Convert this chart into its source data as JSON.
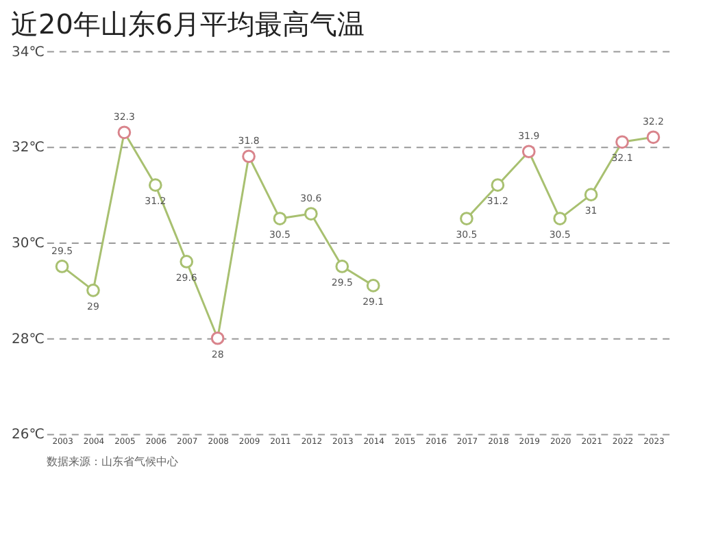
{
  "chart_data": {
    "type": "line",
    "title": "近20年山东6月平均最高气温",
    "categories": [
      "2003",
      "2004",
      "2005",
      "2006",
      "2007",
      "2008",
      "2009",
      "2011",
      "2012",
      "2013",
      "2014",
      "2015",
      "2016",
      "2017",
      "2018",
      "2019",
      "2020",
      "2021",
      "2022",
      "2023"
    ],
    "series": [
      {
        "color": "#a8c070",
        "values": [
          29.5,
          29,
          32.3,
          31.2,
          29.6,
          28,
          31.8,
          30.5,
          30.6,
          29.5,
          29.1,
          null,
          null,
          30.5,
          31.2,
          31.9,
          30.5,
          31,
          32.1,
          32.2
        ],
        "colors": [
          "#a8c070",
          "#a8c070",
          "#d9848c",
          "#a8c070",
          "#a8c070",
          "#d9848c",
          "#d9848c",
          "#a8c070",
          "#a8c070",
          "#a8c070",
          "#a8c070",
          "#a8c070",
          "#a8c070",
          "#a8c070",
          "#a8c070",
          "#d9848c",
          "#a8c070",
          "#a8c070",
          "#d9848c",
          "#d9848c"
        ],
        "value_labels": [
          "29.5",
          "29",
          "32.3",
          "31.2",
          "29.6",
          "28",
          "31.8",
          "30.5",
          "30.6",
          "29.5",
          "29.1",
          null,
          null,
          "30.5",
          "31.2",
          "31.9",
          "30.5",
          "31",
          "32.1",
          "32.2"
        ]
      }
    ],
    "ylim": [
      26,
      34
    ],
    "yticks": [
      {
        "value": 26,
        "label": "26℃"
      },
      {
        "value": 28,
        "label": "28℃"
      },
      {
        "value": 30,
        "label": "30℃"
      },
      {
        "value": 32,
        "label": "32℃"
      },
      {
        "value": 34,
        "label": "34℃"
      }
    ],
    "grid": "y",
    "marker": "circle",
    "line_style": "solid",
    "annotations": [
      "数据来源：山东省气候中心"
    ]
  }
}
